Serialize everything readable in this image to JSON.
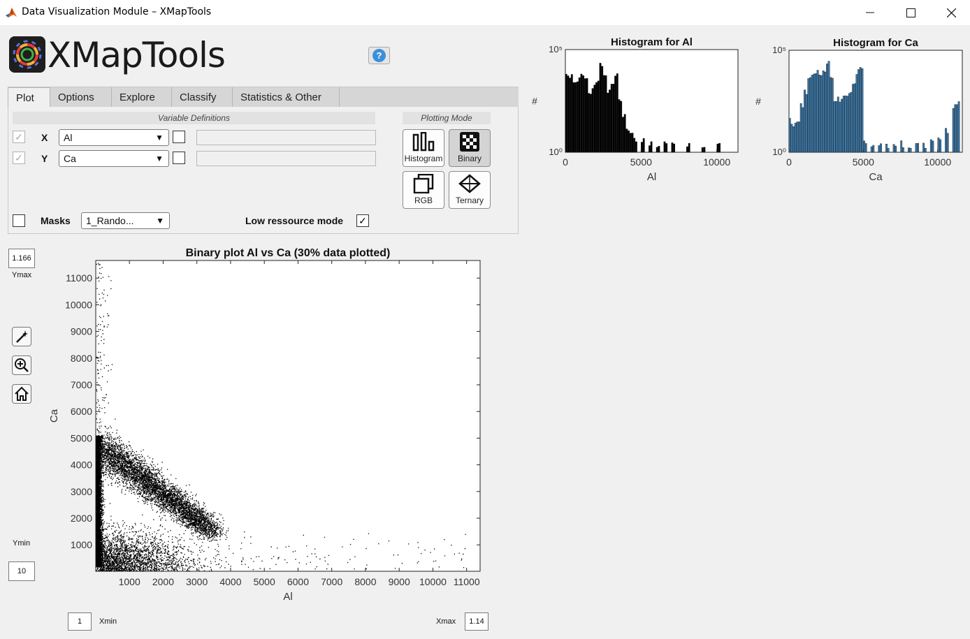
{
  "window": {
    "title": "Data Visualization Module – XMapTools",
    "minimize_icon": "minimize-icon",
    "maximize_icon": "maximize-icon",
    "close_icon": "close-icon"
  },
  "logo": {
    "text": "XMapTools",
    "icon": "gear-rainbow-icon"
  },
  "help": {
    "label": "?"
  },
  "tabs": [
    {
      "label": "Plot",
      "active": true
    },
    {
      "label": "Options"
    },
    {
      "label": "Explore"
    },
    {
      "label": "Classify"
    },
    {
      "label": "Statistics & Other"
    }
  ],
  "variables": {
    "header": "Variable Definitions",
    "x": {
      "label": "X",
      "value": "Al",
      "checked": true,
      "log_checked": false,
      "expr": ""
    },
    "y": {
      "label": "Y",
      "value": "Ca",
      "checked": true,
      "log_checked": false,
      "expr": ""
    }
  },
  "plotting_mode": {
    "header": "Plotting Mode",
    "buttons": [
      {
        "label": "Histogram",
        "icon": "histogram-icon",
        "active": false
      },
      {
        "label": "Binary",
        "icon": "binary-checker-icon",
        "active": true
      },
      {
        "label": "RGB",
        "icon": "rgb-layers-icon",
        "active": false
      },
      {
        "label": "Ternary",
        "icon": "ternary-icon",
        "active": false
      }
    ]
  },
  "masks": {
    "label": "Masks",
    "value": "1_Rando...",
    "checked": false
  },
  "low_resource": {
    "label": "Low ressource mode",
    "checked": true
  },
  "limits": {
    "ymax_value": "1.166",
    "ymax_label": "Ymax",
    "ymin_value": "10",
    "ymin_label": "Ymin",
    "xmin_value": "1",
    "xmin_label": "Xmin",
    "xmax_value": "1.14",
    "xmax_label": "Xmax"
  },
  "tools": [
    {
      "icon": "magic-wand-icon"
    },
    {
      "icon": "zoom-in-icon"
    },
    {
      "icon": "home-icon"
    }
  ],
  "chart_data": [
    {
      "type": "scatter",
      "title": "Binary plot Al vs Ca (30% data plotted)",
      "xlabel": "Al",
      "ylabel": "Ca",
      "xlim": [
        1,
        11400
      ],
      "ylim": [
        10,
        11660
      ],
      "xticks": [
        "1000",
        "2000",
        "3000",
        "4000",
        "5000",
        "6000",
        "7000",
        "8000",
        "9000",
        "10000",
        "11000"
      ],
      "yticks": [
        "1000",
        "2000",
        "3000",
        "4000",
        "5000",
        "6000",
        "7000",
        "8000",
        "9000",
        "10000",
        "11000"
      ],
      "point_color": "#000000",
      "clusters": [
        {
          "name": "vertical-band",
          "x_center": 80,
          "x_spread": 80,
          "y_center": 2800,
          "y_spread": 2600
        },
        {
          "name": "upper-tail",
          "x_center": 250,
          "x_spread": 200,
          "y_center": 8500,
          "y_spread": 2500
        },
        {
          "name": "main-trend",
          "x_from": 200,
          "y_from": 4600,
          "x_to": 3500,
          "y_to": 1500
        },
        {
          "name": "low-spread",
          "x_center": 1500,
          "x_spread": 1300,
          "y_center": 900,
          "y_spread": 700
        },
        {
          "name": "sparse-tail",
          "x_center": 6500,
          "x_spread": 3000,
          "y_center": 700,
          "y_spread": 500
        }
      ]
    },
    {
      "type": "bar",
      "title": "Histogram for Al",
      "xlabel": "Al",
      "ylabel": "#",
      "yscale": "log",
      "ylim_labels": [
        "10⁰",
        "10⁵"
      ],
      "xticks": [
        "0",
        "5000",
        "10000"
      ],
      "xlim": [
        0,
        11400
      ],
      "bar_color": "#000000",
      "bins_x": [
        0,
        250,
        500,
        750,
        1000,
        1250,
        1500,
        1750,
        2000,
        2250,
        2500,
        2750,
        3000,
        3250,
        3500,
        3750,
        4000,
        4250,
        4500,
        5000,
        5500,
        6000,
        6500,
        7000,
        8000,
        9000,
        10000
      ],
      "bins_log_count": [
        3.8,
        3.7,
        3.3,
        3.6,
        3.9,
        3.5,
        3.0,
        3.2,
        3.4,
        4.2,
        3.6,
        3.0,
        3.4,
        3.7,
        2.6,
        1.7,
        1.2,
        0.9,
        0.6,
        0.5,
        0.4,
        0.4,
        0.5,
        0.3,
        0.3,
        0.3,
        0.3
      ]
    },
    {
      "type": "bar",
      "title": "Histogram for Ca",
      "xlabel": "Ca",
      "ylabel": "#",
      "yscale": "log",
      "ylim_labels": [
        "10⁰",
        "10⁵"
      ],
      "xticks": [
        "0",
        "5000",
        "10000"
      ],
      "xlim": [
        0,
        11660
      ],
      "bar_color": "#3c78a8",
      "bins_x": [
        0,
        250,
        500,
        750,
        1000,
        1250,
        1500,
        1750,
        2000,
        2250,
        2500,
        2750,
        3000,
        3250,
        3500,
        3750,
        4000,
        4250,
        4500,
        4750,
        5000,
        5500,
        6000,
        6500,
        7000,
        7500,
        8000,
        8500,
        9000,
        9500,
        10000,
        10500,
        11000,
        11250
      ],
      "bins_log_count": [
        1.5,
        1.3,
        1.6,
        2.3,
        3.0,
        3.5,
        3.9,
        4.0,
        3.8,
        4.1,
        4.4,
        3.6,
        2.6,
        2.6,
        2.7,
        2.8,
        3.0,
        3.3,
        3.9,
        4.0,
        0.4,
        0.4,
        0.3,
        0.3,
        0.3,
        0.4,
        0.3,
        0.4,
        0.3,
        0.5,
        0.6,
        1.0,
        2.2,
        2.4
      ]
    }
  ]
}
